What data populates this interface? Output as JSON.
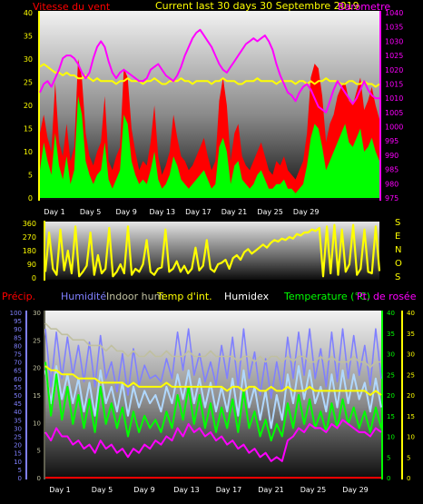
{
  "header": {
    "wind_title": "Vitesse du vent",
    "period_title": "Current last 30 days 30 Septembre 2019",
    "baro_title": "Barometre"
  },
  "colors": {
    "wind_gust": "#ff0000",
    "wind_avg": "#00ff00",
    "wind_dir": "#ffff00",
    "baro": "#ff00ff",
    "temp_in": "#ffff00",
    "precip": "#ff0000",
    "humidity": "#8080ff",
    "indoor_hum": "#c0c0a0",
    "humidex": "#b0d8ff",
    "temperature": "#00ff00",
    "dewpoint": "#ff00ff"
  },
  "chart_data": [
    {
      "type": "line",
      "panel": "wind_baro",
      "x_tick_labels": [
        "Day 1",
        "Day 5",
        "Day 9",
        "Day 13",
        "Day 17",
        "Day 21",
        "Day 25",
        "Day 29"
      ],
      "ylim_left": [
        0,
        40
      ],
      "yticks_left": [
        0,
        5,
        10,
        15,
        20,
        25,
        30,
        35,
        40
      ],
      "ylim_right": [
        975,
        1040
      ],
      "yticks_right": [
        975,
        980,
        985,
        990,
        995,
        1000,
        1005,
        1010,
        1015,
        1020,
        1025,
        1030,
        1035,
        1040
      ],
      "series": [
        {
          "key": "gust",
          "color_key": "wind_gust",
          "values": [
            14,
            18,
            13,
            10,
            25,
            12,
            9,
            16,
            8,
            11,
            30,
            26,
            14,
            9,
            7,
            10,
            12,
            22,
            8,
            6,
            9,
            11,
            28,
            26,
            15,
            10,
            6,
            8,
            7,
            12,
            20,
            9,
            5,
            7,
            10,
            18,
            13,
            9,
            8,
            6,
            7,
            9,
            11,
            13,
            9,
            6,
            8,
            21,
            26,
            20,
            8,
            14,
            16,
            9,
            7,
            6,
            8,
            10,
            12,
            9,
            6,
            5,
            8,
            7,
            9,
            6,
            5,
            4,
            6,
            8,
            14,
            26,
            29,
            28,
            22,
            12,
            16,
            18,
            22,
            24,
            25,
            21,
            20,
            23,
            26,
            19,
            21,
            24,
            20,
            17
          ]
        },
        {
          "key": "avg",
          "color_key": "wind_avg",
          "values": [
            6,
            12,
            8,
            5,
            14,
            7,
            4,
            9,
            3,
            6,
            22,
            18,
            8,
            5,
            3,
            5,
            6,
            12,
            4,
            2,
            4,
            6,
            18,
            16,
            8,
            5,
            3,
            4,
            3,
            6,
            10,
            4,
            2,
            3,
            5,
            9,
            7,
            4,
            3,
            2,
            3,
            4,
            5,
            6,
            4,
            2,
            3,
            11,
            13,
            10,
            3,
            7,
            8,
            4,
            3,
            2,
            3,
            5,
            6,
            4,
            2,
            2,
            3,
            3,
            4,
            2,
            2,
            1,
            2,
            3,
            7,
            13,
            16,
            15,
            11,
            6,
            8,
            10,
            12,
            14,
            16,
            12,
            11,
            13,
            15,
            10,
            11,
            13,
            10,
            8
          ]
        },
        {
          "key": "temp_in",
          "color_key": "temp_in",
          "axis": "right",
          "values": [
            1021,
            1022,
            1021,
            1020,
            1019,
            1019,
            1018,
            1019,
            1018,
            1018,
            1017,
            1017,
            1018,
            1017,
            1016,
            1017,
            1016,
            1016,
            1016,
            1016,
            1015,
            1016,
            1016,
            1017,
            1016,
            1016,
            1016,
            1015,
            1016,
            1016,
            1017,
            1016,
            1015,
            1015,
            1016,
            1016,
            1016,
            1017,
            1016,
            1016,
            1015,
            1016,
            1016,
            1016,
            1016,
            1015,
            1016,
            1016,
            1017,
            1016,
            1016,
            1016,
            1015,
            1015,
            1016,
            1016,
            1016,
            1017,
            1016,
            1016,
            1016,
            1016,
            1015,
            1016,
            1016,
            1016,
            1016,
            1015,
            1016,
            1016,
            1015,
            1016,
            1015,
            1016,
            1016,
            1017,
            1016,
            1016,
            1016,
            1015,
            1015,
            1016,
            1016,
            1015,
            1015,
            1016,
            1015,
            1015,
            1014,
            1015
          ]
        },
        {
          "key": "baro",
          "color_key": "baro",
          "axis": "right",
          "values": [
            1012,
            1015,
            1016,
            1014,
            1017,
            1020,
            1024,
            1025,
            1025,
            1024,
            1022,
            1019,
            1017,
            1019,
            1024,
            1028,
            1030,
            1028,
            1023,
            1019,
            1017,
            1019,
            1020,
            1019,
            1018,
            1017,
            1016,
            1016,
            1017,
            1020,
            1021,
            1022,
            1020,
            1018,
            1017,
            1016,
            1018,
            1021,
            1025,
            1028,
            1031,
            1033,
            1034,
            1032,
            1030,
            1028,
            1025,
            1022,
            1020,
            1019,
            1021,
            1023,
            1025,
            1027,
            1029,
            1030,
            1031,
            1030,
            1031,
            1032,
            1030,
            1027,
            1022,
            1018,
            1015,
            1012,
            1011,
            1009,
            1012,
            1014,
            1015,
            1013,
            1010,
            1007,
            1006,
            1005,
            1009,
            1013,
            1016,
            1014,
            1012,
            1010,
            1008,
            1010,
            1013,
            1016,
            1013,
            1011,
            1010,
            1010
          ]
        }
      ]
    },
    {
      "type": "line",
      "panel": "wind_direction",
      "x_tick_labels": [
        "Day 1",
        "Day 5",
        "Day 9",
        "Day 13",
        "Day 17",
        "Day 21",
        "Day 25",
        "Day 29"
      ],
      "ylim": [
        0,
        360
      ],
      "yticks": [
        0,
        90,
        180,
        270,
        360
      ],
      "compass_labels": [
        "S",
        "E",
        "N",
        "O",
        "S"
      ],
      "series": [
        {
          "key": "dir",
          "color_key": "wind_dir",
          "values": [
            40,
            300,
            60,
            20,
            320,
            50,
            180,
            30,
            340,
            10,
            40,
            80,
            300,
            20,
            150,
            30,
            60,
            330,
            10,
            40,
            90,
            30,
            340,
            20,
            60,
            40,
            90,
            250,
            40,
            20,
            60,
            70,
            320,
            40,
            60,
            110,
            40,
            80,
            30,
            60,
            200,
            50,
            80,
            250,
            60,
            40,
            90,
            100,
            120,
            60,
            130,
            150,
            120,
            170,
            190,
            160,
            180,
            200,
            220,
            200,
            230,
            250,
            240,
            260,
            250,
            270,
            260,
            290,
            280,
            300,
            300,
            320,
            310,
            330,
            10,
            340,
            30,
            350,
            20,
            320,
            40,
            90,
            350,
            20,
            60,
            320,
            40,
            30,
            340,
            45
          ]
        }
      ]
    },
    {
      "type": "line",
      "panel": "temp_humidity",
      "x_tick_labels": [
        "Day 1",
        "Day 5",
        "Day 9",
        "Day 13",
        "Day 17",
        "Day 21",
        "Day 25",
        "Day 29"
      ],
      "ylim_humidity": [
        0,
        100
      ],
      "yticks_humidity": [
        0,
        5,
        10,
        15,
        20,
        25,
        30,
        35,
        40,
        45,
        50,
        55,
        60,
        65,
        70,
        75,
        80,
        85,
        90,
        95,
        100
      ],
      "ylim_precip": [
        0,
        30
      ],
      "yticks_precip": [
        0,
        5,
        10,
        15,
        20,
        25,
        30
      ],
      "ylim_temp": [
        0,
        40
      ],
      "yticks_temp": [
        0,
        5,
        10,
        15,
        20,
        25,
        30,
        35,
        40
      ],
      "legend": [
        "Précip.",
        "Humidité",
        "Indoor hum",
        "Temp d'int.",
        "Humidex",
        "Temperature (°C)",
        "Pt. de rosée"
      ],
      "series": [
        {
          "key": "precip",
          "color_key": "precip",
          "values": [
            0,
            0,
            0,
            0,
            0,
            0,
            0,
            0,
            0,
            0,
            0,
            0,
            0,
            0,
            0,
            0,
            0,
            0,
            0,
            0,
            0,
            0,
            0,
            0,
            0,
            0,
            0,
            0,
            0,
            0,
            0,
            0,
            0,
            0,
            0,
            0,
            0,
            0,
            0,
            0,
            0,
            0,
            0,
            0,
            0,
            0,
            0,
            0,
            0,
            0,
            0,
            0,
            0,
            0,
            0,
            0,
            0,
            0,
            0,
            0,
            0,
            0
          ]
        },
        {
          "key": "humidity",
          "color_key": "humidity",
          "values": [
            90,
            55,
            88,
            60,
            85,
            62,
            80,
            58,
            82,
            55,
            86,
            60,
            70,
            52,
            75,
            50,
            78,
            56,
            68,
            60,
            62,
            58,
            72,
            60,
            88,
            65,
            90,
            62,
            75,
            58,
            70,
            56,
            80,
            60,
            85,
            55,
            90,
            60,
            76,
            50,
            72,
            48,
            70,
            52,
            85,
            60,
            88,
            62,
            90,
            60,
            78,
            55,
            88,
            58,
            90,
            60,
            86,
            62,
            80,
            56,
            90,
            60
          ]
        },
        {
          "key": "indoor_hum",
          "color_key": "indoor_hum",
          "axis": "precip",
          "values": [
            28,
            27,
            27,
            26,
            26,
            25,
            25,
            25,
            24,
            24,
            24,
            23,
            24,
            23,
            23,
            22,
            23,
            22,
            22,
            23,
            22,
            22,
            23,
            22,
            22,
            22,
            23,
            22,
            22,
            22,
            23,
            22,
            22,
            22,
            22,
            21,
            22,
            22,
            21,
            22,
            21,
            22,
            22,
            21,
            22,
            21,
            22,
            22,
            21,
            21,
            22,
            21,
            22,
            21,
            21,
            21,
            22,
            21,
            21,
            20,
            21,
            21
          ]
        },
        {
          "key": "temp_in",
          "color_key": "temp_in",
          "axis": "temp",
          "values": [
            27,
            26,
            26,
            25,
            25,
            25,
            24,
            24,
            24,
            24,
            23,
            23,
            23,
            23,
            23,
            22,
            23,
            22,
            22,
            22,
            22,
            22,
            23,
            22,
            22,
            22,
            22,
            22,
            22,
            22,
            22,
            22,
            22,
            21,
            22,
            22,
            21,
            22,
            22,
            21,
            21,
            22,
            21,
            21,
            22,
            21,
            21,
            21,
            22,
            21,
            21,
            21,
            21,
            21,
            21,
            21,
            21,
            21,
            21,
            20,
            21,
            20
          ]
        },
        {
          "key": "humidex",
          "color_key": "humidex",
          "axis": "temp",
          "values": [
            26,
            18,
            27,
            19,
            25,
            18,
            24,
            16,
            23,
            15,
            26,
            18,
            22,
            16,
            23,
            15,
            22,
            17,
            21,
            18,
            20,
            16,
            22,
            18,
            25,
            19,
            26,
            18,
            24,
            17,
            23,
            16,
            22,
            16,
            24,
            15,
            26,
            17,
            22,
            14,
            21,
            12,
            20,
            14,
            25,
            18,
            27,
            19,
            26,
            18,
            22,
            16,
            25,
            17,
            26,
            18,
            25,
            19,
            23,
            16,
            24,
            17
          ]
        },
        {
          "key": "temperature",
          "color_key": "temperature",
          "axis": "temp",
          "values": [
            28,
            15,
            25,
            14,
            22,
            13,
            20,
            12,
            19,
            11,
            22,
            13,
            18,
            12,
            17,
            10,
            16,
            11,
            15,
            12,
            14,
            11,
            16,
            12,
            20,
            14,
            22,
            13,
            20,
            12,
            18,
            11,
            17,
            12,
            19,
            11,
            21,
            12,
            16,
            10,
            14,
            9,
            13,
            10,
            18,
            12,
            20,
            13,
            19,
            12,
            16,
            11,
            18,
            12,
            19,
            13,
            17,
            12,
            16,
            11,
            17,
            12
          ]
        },
        {
          "key": "dewpoint",
          "color_key": "dewpoint",
          "axis": "temp",
          "values": [
            11,
            9,
            12,
            10,
            10,
            8,
            9,
            7,
            8,
            6,
            9,
            7,
            8,
            6,
            7,
            5,
            7,
            6,
            8,
            7,
            9,
            8,
            10,
            9,
            12,
            10,
            13,
            11,
            12,
            10,
            11,
            9,
            10,
            8,
            9,
            7,
            8,
            6,
            7,
            5,
            6,
            4,
            5,
            4,
            9,
            10,
            12,
            11,
            13,
            12,
            12,
            11,
            13,
            12,
            14,
            13,
            12,
            11,
            11,
            10,
            12,
            11
          ]
        }
      ]
    }
  ]
}
